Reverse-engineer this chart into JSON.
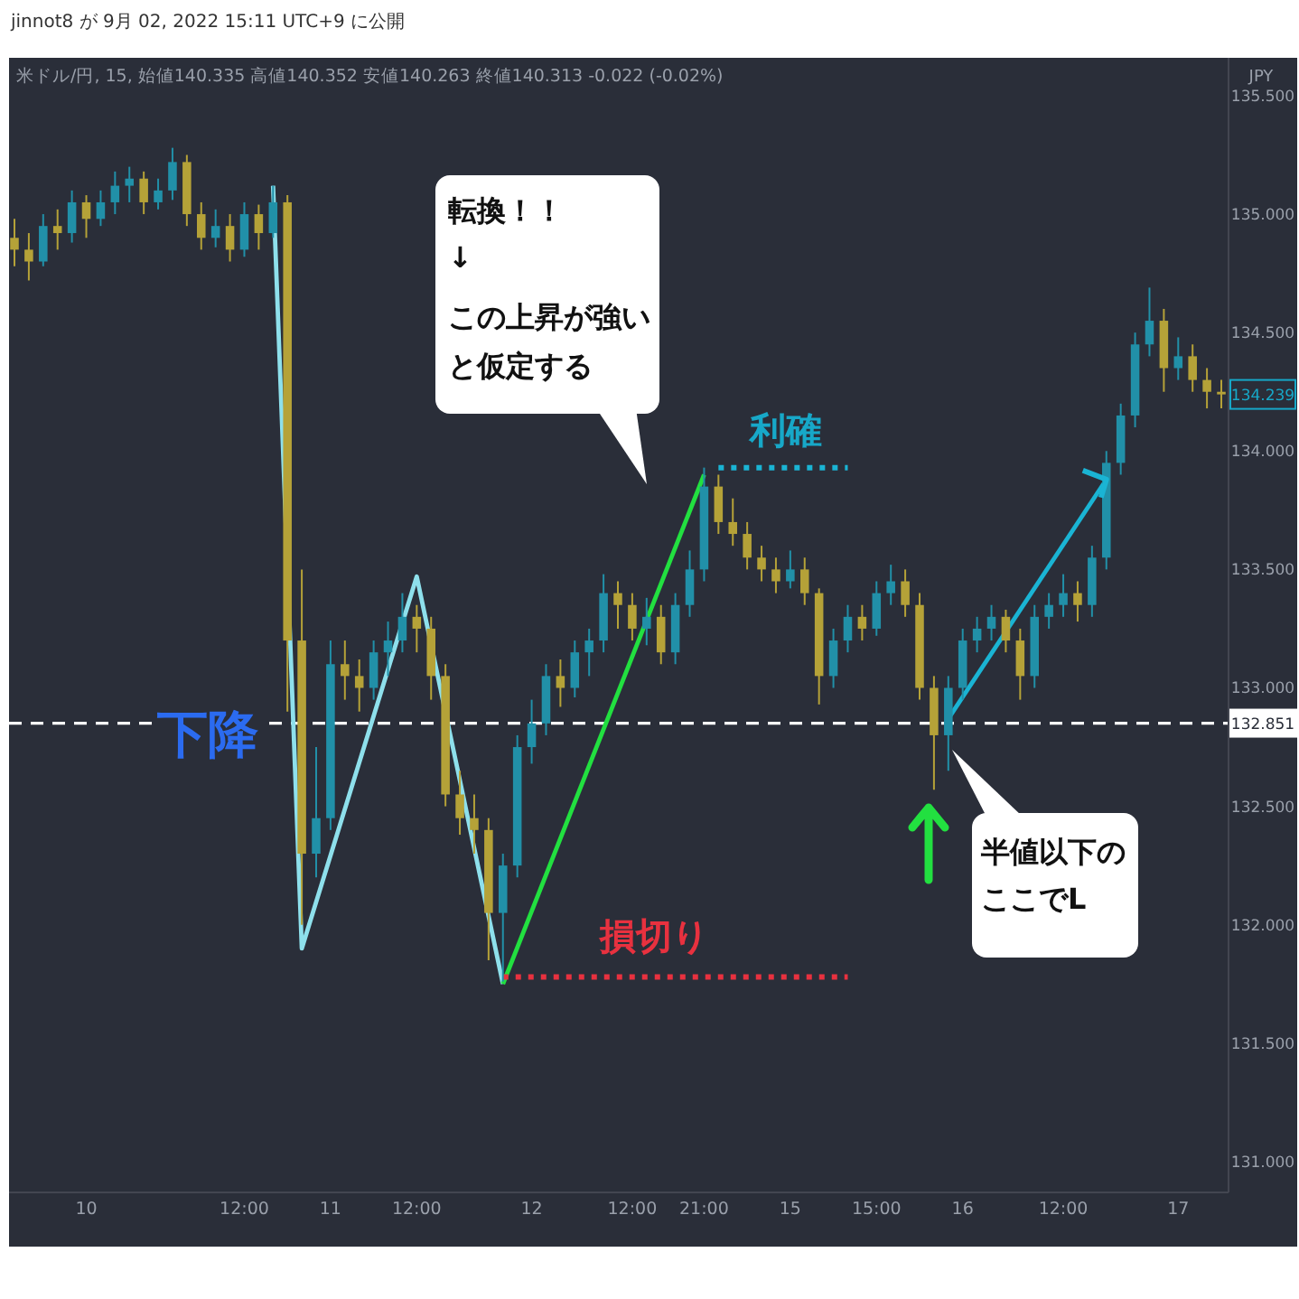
{
  "chart_data": {
    "type": "candlestick",
    "title": "jinnot8 が 9月 02, 2022 15:11 UTC+9 に公開",
    "subtitle": "米ドル/円, 15, 始値140.335 高値140.352 安値140.263 終値140.313 -0.022 (-0.02%)",
    "ylabel": "JPY",
    "categories": [
      null,
      null,
      null,
      null,
      null,
      "10",
      null,
      null,
      null,
      null,
      null,
      null,
      null,
      null,
      null,
      null,
      "12:00",
      null,
      null,
      null,
      null,
      null,
      "11",
      null,
      null,
      null,
      null,
      null,
      "12:00",
      null,
      null,
      null,
      null,
      null,
      null,
      null,
      "12",
      null,
      null,
      null,
      null,
      null,
      null,
      "12:00",
      null,
      null,
      null,
      null,
      "21:00",
      null,
      null,
      null,
      null,
      null,
      "15",
      null,
      null,
      null,
      null,
      null,
      "15:00",
      null,
      null,
      null,
      null,
      null,
      "16",
      null,
      null,
      null,
      null,
      null,
      null,
      "12:00",
      null,
      null,
      null,
      null,
      null,
      null,
      null,
      "17",
      null,
      null,
      null
    ],
    "ohlc": [
      [
        134.9,
        134.98,
        134.78,
        134.85
      ],
      [
        134.85,
        134.92,
        134.72,
        134.8
      ],
      [
        134.8,
        135.0,
        134.78,
        134.95
      ],
      [
        134.95,
        135.02,
        134.85,
        134.92
      ],
      [
        134.92,
        135.1,
        134.88,
        135.05
      ],
      [
        135.05,
        135.08,
        134.9,
        134.98
      ],
      [
        134.98,
        135.1,
        134.95,
        135.05
      ],
      [
        135.05,
        135.18,
        135.0,
        135.12
      ],
      [
        135.12,
        135.2,
        135.05,
        135.15
      ],
      [
        135.15,
        135.18,
        135.0,
        135.05
      ],
      [
        135.05,
        135.15,
        135.02,
        135.1
      ],
      [
        135.1,
        135.28,
        135.06,
        135.22
      ],
      [
        135.22,
        135.25,
        134.95,
        135.0
      ],
      [
        135.0,
        135.05,
        134.85,
        134.9
      ],
      [
        134.9,
        135.02,
        134.86,
        134.95
      ],
      [
        134.95,
        135.0,
        134.8,
        134.85
      ],
      [
        134.85,
        135.05,
        134.82,
        135.0
      ],
      [
        135.0,
        135.04,
        134.85,
        134.92
      ],
      [
        134.92,
        135.12,
        134.9,
        135.05
      ],
      [
        135.05,
        135.08,
        132.9,
        133.2
      ],
      [
        133.2,
        133.5,
        132.0,
        132.3
      ],
      [
        132.3,
        132.75,
        132.2,
        132.45
      ],
      [
        132.45,
        133.2,
        132.4,
        133.1
      ],
      [
        133.1,
        133.2,
        132.95,
        133.05
      ],
      [
        133.05,
        133.12,
        132.9,
        133.0
      ],
      [
        133.0,
        133.2,
        132.95,
        133.15
      ],
      [
        133.15,
        133.28,
        133.05,
        133.2
      ],
      [
        133.2,
        133.4,
        133.15,
        133.3
      ],
      [
        133.3,
        133.35,
        133.15,
        133.25
      ],
      [
        133.25,
        133.3,
        132.95,
        133.05
      ],
      [
        133.05,
        133.1,
        132.5,
        132.55
      ],
      [
        132.55,
        132.65,
        132.38,
        132.45
      ],
      [
        132.45,
        132.55,
        132.3,
        132.4
      ],
      [
        132.4,
        132.45,
        131.85,
        132.05
      ],
      [
        132.05,
        132.3,
        131.76,
        132.25
      ],
      [
        132.25,
        132.8,
        132.2,
        132.75
      ],
      [
        132.75,
        132.95,
        132.68,
        132.85
      ],
      [
        132.85,
        133.1,
        132.8,
        133.05
      ],
      [
        133.05,
        133.12,
        132.92,
        133.0
      ],
      [
        133.0,
        133.2,
        132.96,
        133.15
      ],
      [
        133.15,
        133.25,
        133.05,
        133.2
      ],
      [
        133.2,
        133.48,
        133.15,
        133.4
      ],
      [
        133.4,
        133.45,
        133.25,
        133.35
      ],
      [
        133.35,
        133.4,
        133.2,
        133.25
      ],
      [
        133.25,
        133.38,
        133.18,
        133.3
      ],
      [
        133.3,
        133.35,
        133.1,
        133.15
      ],
      [
        133.15,
        133.4,
        133.1,
        133.35
      ],
      [
        133.35,
        133.58,
        133.3,
        133.5
      ],
      [
        133.5,
        133.93,
        133.45,
        133.85
      ],
      [
        133.85,
        133.9,
        133.65,
        133.7
      ],
      [
        133.7,
        133.8,
        133.6,
        133.65
      ],
      [
        133.65,
        133.7,
        133.5,
        133.55
      ],
      [
        133.55,
        133.6,
        133.45,
        133.5
      ],
      [
        133.5,
        133.55,
        133.4,
        133.45
      ],
      [
        133.45,
        133.58,
        133.42,
        133.5
      ],
      [
        133.5,
        133.55,
        133.35,
        133.4
      ],
      [
        133.4,
        133.42,
        132.93,
        133.05
      ],
      [
        133.05,
        133.25,
        133.0,
        133.2
      ],
      [
        133.2,
        133.35,
        133.15,
        133.3
      ],
      [
        133.3,
        133.35,
        133.2,
        133.25
      ],
      [
        133.25,
        133.45,
        133.22,
        133.4
      ],
      [
        133.4,
        133.52,
        133.35,
        133.45
      ],
      [
        133.45,
        133.5,
        133.3,
        133.35
      ],
      [
        133.35,
        133.4,
        132.95,
        133.0
      ],
      [
        133.0,
        133.05,
        132.57,
        132.8
      ],
      [
        132.8,
        133.05,
        132.65,
        133.0
      ],
      [
        133.0,
        133.25,
        132.95,
        133.2
      ],
      [
        133.2,
        133.3,
        133.15,
        133.25
      ],
      [
        133.25,
        133.35,
        133.2,
        133.3
      ],
      [
        133.3,
        133.33,
        133.15,
        133.2
      ],
      [
        133.2,
        133.25,
        132.95,
        133.05
      ],
      [
        133.05,
        133.35,
        133.0,
        133.3
      ],
      [
        133.3,
        133.4,
        133.25,
        133.35
      ],
      [
        133.35,
        133.48,
        133.3,
        133.4
      ],
      [
        133.4,
        133.45,
        133.28,
        133.35
      ],
      [
        133.35,
        133.6,
        133.3,
        133.55
      ],
      [
        133.55,
        134.0,
        133.5,
        133.95
      ],
      [
        133.95,
        134.2,
        133.9,
        134.15
      ],
      [
        134.15,
        134.5,
        134.1,
        134.45
      ],
      [
        134.45,
        134.69,
        134.4,
        134.55
      ],
      [
        134.55,
        134.6,
        134.25,
        134.35
      ],
      [
        134.35,
        134.48,
        134.3,
        134.4
      ],
      [
        134.4,
        134.45,
        134.25,
        134.3
      ],
      [
        134.3,
        134.35,
        134.18,
        134.25
      ],
      [
        134.25,
        134.3,
        134.18,
        134.239
      ]
    ],
    "colors": [
      "#b5a238",
      "#b5a238",
      "#2190a8",
      "#b5a238",
      "#2190a8",
      "#b5a238",
      "#2190a8",
      "#2190a8",
      "#2190a8",
      "#b5a238",
      "#2190a8",
      "#2190a8",
      "#b5a238",
      "#b5a238",
      "#2190a8",
      "#b5a238",
      "#2190a8",
      "#b5a238",
      "#2190a8",
      "#b5a238",
      "#b5a238",
      "#2190a8",
      "#2190a8",
      "#b5a238",
      "#b5a238",
      "#2190a8",
      "#2190a8",
      "#2190a8",
      "#b5a238",
      "#b5a238",
      "#b5a238",
      "#b5a238",
      "#b5a238",
      "#b5a238",
      "#2190a8",
      "#2190a8",
      "#2190a8",
      "#2190a8",
      "#b5a238",
      "#2190a8",
      "#2190a8",
      "#2190a8",
      "#b5a238",
      "#b5a238",
      "#2190a8",
      "#b5a238",
      "#2190a8",
      "#2190a8",
      "#2190a8",
      "#b5a238",
      "#b5a238",
      "#b5a238",
      "#b5a238",
      "#b5a238",
      "#2190a8",
      "#b5a238",
      "#b5a238",
      "#2190a8",
      "#2190a8",
      "#b5a238",
      "#2190a8",
      "#2190a8",
      "#b5a238",
      "#b5a238",
      "#b5a238",
      "#2190a8",
      "#2190a8",
      "#2190a8",
      "#2190a8",
      "#b5a238",
      "#b5a238",
      "#2190a8",
      "#2190a8",
      "#2190a8",
      "#b5a238",
      "#2190a8",
      "#2190a8",
      "#2190a8",
      "#2190a8",
      "#2190a8",
      "#b5a238",
      "#2190a8",
      "#b5a238",
      "#b5a238",
      "#b5a238"
    ],
    "series": [
      {
        "type": "line",
        "color": "#8ee0ec",
        "values": [
          null,
          null,
          null,
          null,
          null,
          null,
          null,
          null,
          null,
          null,
          null,
          null,
          null,
          null,
          null,
          null,
          null,
          null,
          135.12,
          null,
          131.9,
          null,
          null,
          null,
          null,
          null,
          null,
          null,
          133.47,
          null,
          null,
          null,
          null,
          null,
          131.75,
          null,
          null,
          null,
          null,
          null,
          null,
          null,
          null,
          null,
          null,
          null,
          null,
          null,
          null,
          null,
          null,
          null,
          null,
          null,
          null,
          null,
          null,
          null,
          null,
          null,
          null,
          null,
          null,
          null,
          null,
          null,
          null,
          null,
          null,
          null,
          null,
          null,
          null,
          null,
          null,
          null,
          null,
          null,
          null,
          null,
          null,
          null,
          null,
          null,
          null
        ]
      },
      {
        "type": "line",
        "color": "#22e040",
        "values": [
          null,
          null,
          null,
          null,
          null,
          null,
          null,
          null,
          null,
          null,
          null,
          null,
          null,
          null,
          null,
          null,
          null,
          null,
          null,
          null,
          null,
          null,
          null,
          null,
          null,
          null,
          null,
          null,
          null,
          null,
          null,
          null,
          null,
          null,
          131.75,
          null,
          null,
          null,
          null,
          null,
          null,
          null,
          null,
          null,
          null,
          null,
          null,
          null,
          133.9,
          null,
          null,
          null,
          null,
          null,
          null,
          null,
          null,
          null,
          null,
          null,
          null,
          null,
          null,
          null,
          null,
          null,
          null,
          null,
          null,
          null,
          null,
          null,
          null,
          null,
          null,
          null,
          null,
          null,
          null,
          null,
          null,
          null,
          null,
          null,
          null
        ]
      },
      {
        "type": "line",
        "color": "#1ab4d4",
        "values": [
          null,
          null,
          null,
          null,
          null,
          null,
          null,
          null,
          null,
          null,
          null,
          null,
          null,
          null,
          null,
          null,
          null,
          null,
          null,
          null,
          null,
          null,
          null,
          null,
          null,
          null,
          null,
          null,
          null,
          null,
          null,
          null,
          null,
          null,
          null,
          null,
          null,
          null,
          null,
          null,
          null,
          null,
          null,
          null,
          null,
          null,
          null,
          null,
          null,
          null,
          null,
          null,
          null,
          null,
          null,
          null,
          null,
          null,
          null,
          null,
          null,
          null,
          null,
          null,
          null,
          132.87,
          null,
          null,
          null,
          null,
          null,
          null,
          null,
          null,
          null,
          null,
          133.88,
          null,
          null,
          null,
          null,
          null,
          null,
          null,
          null
        ]
      },
      {
        "type": "line",
        "color": "#1ab4d4",
        "line_style": "dotted",
        "values": [
          null,
          null,
          null,
          null,
          null,
          null,
          null,
          null,
          null,
          null,
          null,
          null,
          null,
          null,
          null,
          null,
          null,
          null,
          null,
          null,
          null,
          null,
          null,
          null,
          null,
          null,
          null,
          null,
          null,
          null,
          null,
          null,
          null,
          null,
          null,
          null,
          null,
          null,
          null,
          null,
          null,
          null,
          null,
          null,
          null,
          null,
          null,
          null,
          null,
          133.93,
          null,
          null,
          null,
          null,
          null,
          null,
          null,
          null,
          133.93,
          null,
          null,
          null,
          null,
          null,
          null,
          null,
          null,
          null,
          null,
          null,
          null,
          null,
          null,
          null,
          null,
          null,
          null,
          null,
          null,
          null,
          null,
          null,
          null,
          null,
          null
        ]
      },
      {
        "type": "line",
        "color": "#e8313f",
        "line_style": "dotted",
        "values": [
          null,
          null,
          null,
          null,
          null,
          null,
          null,
          null,
          null,
          null,
          null,
          null,
          null,
          null,
          null,
          null,
          null,
          null,
          null,
          null,
          null,
          null,
          null,
          null,
          null,
          null,
          null,
          null,
          null,
          null,
          null,
          null,
          null,
          null,
          131.78,
          null,
          null,
          null,
          null,
          null,
          null,
          null,
          null,
          null,
          null,
          null,
          null,
          null,
          null,
          null,
          null,
          null,
          null,
          null,
          null,
          null,
          null,
          null,
          131.78,
          null,
          null,
          null,
          null,
          null,
          null,
          null,
          null,
          null,
          null,
          null,
          null,
          null,
          null,
          null,
          null,
          null,
          null,
          null,
          null,
          null,
          null,
          null,
          null,
          null,
          null
        ]
      }
    ],
    "ref_lines": [
      {
        "axis": "y",
        "value": 132.851,
        "label": "132.851",
        "color": "#ffffff",
        "line_style": "dashed"
      }
    ],
    "annotations": [
      "下降",
      "転換！！",
      "↓",
      "この上昇が強いと仮定する",
      "利確",
      "損切り",
      "半値以下のここでL",
      "134.239"
    ],
    "ylim": [
      130.87,
      135.66
    ],
    "yticks": [
      {
        "value": 131,
        "label": "131.000"
      },
      {
        "value": 131.5,
        "label": "131.500"
      },
      {
        "value": 132,
        "label": "132.000"
      },
      {
        "value": 132.5,
        "label": "132.500"
      },
      {
        "value": 133,
        "label": "133.000"
      },
      {
        "value": 133.5,
        "label": "133.500"
      },
      {
        "value": 134,
        "label": "134.000"
      },
      {
        "value": 134.5,
        "label": "134.500"
      },
      {
        "value": 135,
        "label": "135.000"
      },
      {
        "value": 135.5,
        "label": "135.500"
      }
    ]
  }
}
